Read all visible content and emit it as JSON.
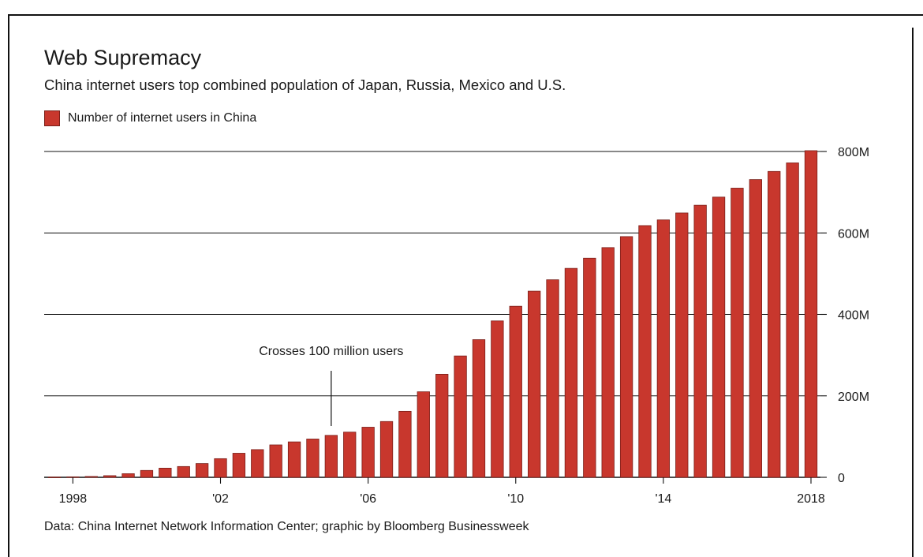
{
  "title": "Web Supremacy",
  "subtitle": "China internet users top combined population of Japan, Russia, Mexico and U.S.",
  "legend_label": "Number of internet users in China",
  "annotation": "Crosses 100 million users",
  "source": "Data: China Internet Network Information Center; graphic by Bloomberg Businessweek",
  "colors": {
    "bar": "#c8372d",
    "bar_edge": "#7a1f19",
    "grid": "#111111"
  },
  "chart_data": {
    "type": "bar",
    "series": [
      {
        "name": "Number of internet users in China",
        "x": [
          1997.5,
          1998.0,
          1998.5,
          1999.0,
          1999.5,
          2000.0,
          2000.5,
          2001.0,
          2001.5,
          2002.0,
          2002.5,
          2003.0,
          2003.5,
          2004.0,
          2004.5,
          2005.0,
          2005.5,
          2006.0,
          2006.5,
          2007.0,
          2007.5,
          2008.0,
          2008.5,
          2009.0,
          2009.5,
          2010.0,
          2010.5,
          2011.0,
          2011.5,
          2012.0,
          2012.5,
          2013.0,
          2013.5,
          2014.0,
          2014.5,
          2015.0,
          2015.5,
          2016.0,
          2016.5,
          2017.0,
          2017.5,
          2018.0
        ],
        "values": [
          0.6,
          1.2,
          2.1,
          4,
          8.9,
          16.9,
          22.5,
          26.5,
          33.7,
          45.8,
          59.1,
          68,
          79.5,
          87,
          94,
          103,
          111,
          123,
          137,
          162,
          210,
          253,
          298,
          338,
          384,
          420,
          457,
          485,
          513,
          538,
          564,
          591,
          618,
          632,
          649,
          668,
          688,
          710,
          731,
          751,
          772,
          802
        ]
      }
    ],
    "x_ticks": [
      {
        "value": 1998,
        "label": "1998"
      },
      {
        "value": 2002,
        "label": "'02"
      },
      {
        "value": 2006,
        "label": "'06"
      },
      {
        "value": 2010,
        "label": "'10"
      },
      {
        "value": 2014,
        "label": "'14"
      },
      {
        "value": 2018,
        "label": "2018"
      }
    ],
    "y_ticks": [
      {
        "value": 0,
        "label": "0"
      },
      {
        "value": 200,
        "label": "200M"
      },
      {
        "value": 400,
        "label": "400M"
      },
      {
        "value": 600,
        "label": "600M"
      },
      {
        "value": 800,
        "label": "800M"
      }
    ],
    "ylim": [
      0,
      800
    ],
    "xlim": [
      1997.5,
      2018.0
    ],
    "annotation_x": 2005.0,
    "grid": true
  }
}
